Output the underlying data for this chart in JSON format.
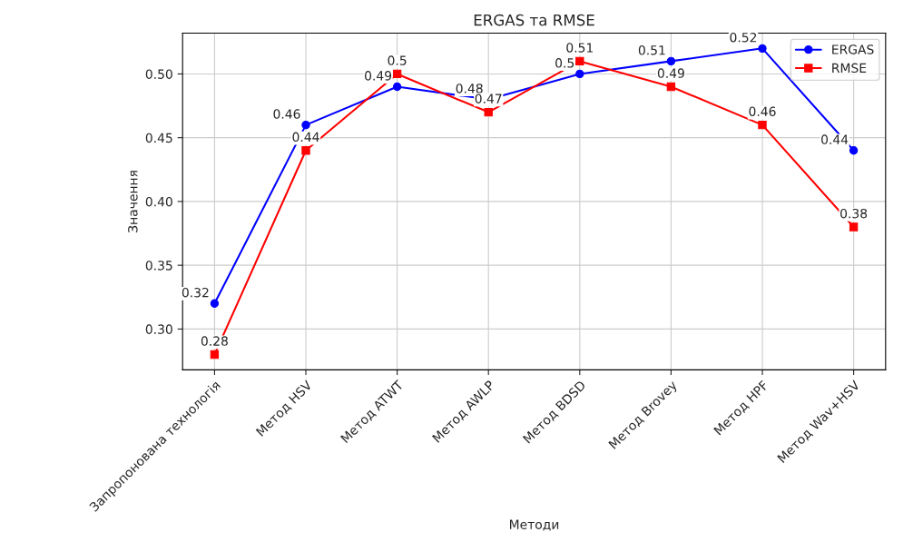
{
  "chart_data": {
    "type": "line",
    "title": "ERGAS та RMSE",
    "xlabel": "Методи",
    "ylabel": "Значення",
    "categories": [
      "Запропонована технологія",
      "Метод HSV",
      "Метод ATWT",
      "Метод AWLP",
      "Метод BDSD",
      "Метод Brovey",
      "Метод HPF",
      "Метод Wav+HSV"
    ],
    "series": [
      {
        "name": "ERGAS",
        "color": "#0000ff",
        "marker": "circle",
        "values": [
          0.32,
          0.46,
          0.49,
          0.48,
          0.5,
          0.51,
          0.52,
          0.44
        ]
      },
      {
        "name": "RMSE",
        "color": "#ff0000",
        "marker": "square",
        "values": [
          0.28,
          0.44,
          0.5,
          0.47,
          0.51,
          0.49,
          0.46,
          0.38
        ]
      }
    ],
    "ylim": [
      0.268,
      0.532
    ],
    "yticks": [
      {
        "value": 0.3,
        "label": "0.30"
      },
      {
        "value": 0.35,
        "label": "0.35"
      },
      {
        "value": 0.4,
        "label": "0.40"
      },
      {
        "value": 0.45,
        "label": "0.45"
      },
      {
        "value": 0.5,
        "label": "0.50"
      }
    ],
    "data_labels": true,
    "grid": true,
    "legend": "top right",
    "line_style": "solid"
  }
}
